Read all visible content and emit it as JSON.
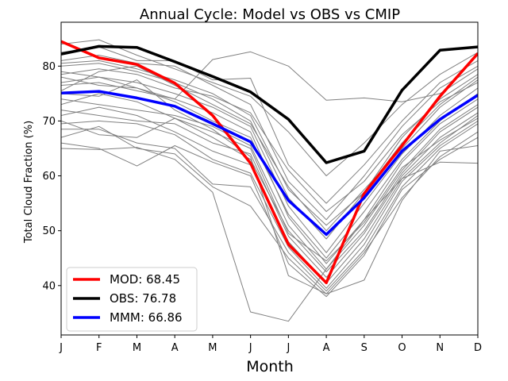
{
  "chart_data": {
    "type": "line",
    "title": "Annual Cycle: Model vs OBS vs CMIP",
    "xlabel": "Month",
    "ylabel": "Total Cloud Fraction (%)",
    "categories": [
      "J",
      "F",
      "M",
      "A",
      "M",
      "J",
      "J",
      "A",
      "S",
      "O",
      "N",
      "D"
    ],
    "ylim": [
      31,
      88
    ],
    "yticks": [
      40,
      50,
      60,
      70,
      80
    ],
    "grid": false,
    "legend_position": "lower-left",
    "colors": {
      "MOD": "#ff0000",
      "OBS": "#000000",
      "MMM": "#0000ff",
      "ensemble": "#808080"
    },
    "series": [
      {
        "name": "MOD",
        "legend": "MOD: 68.45",
        "values": [
          84.5,
          81.5,
          80.3,
          76.9,
          71.0,
          62.3,
          47.5,
          40.5,
          56.8,
          65.5,
          74.5,
          82.3
        ]
      },
      {
        "name": "OBS",
        "legend": "OBS: 76.78",
        "values": [
          82.2,
          83.6,
          83.4,
          80.8,
          78.1,
          75.3,
          70.3,
          62.4,
          64.5,
          75.6,
          82.9,
          83.5
        ]
      },
      {
        "name": "MMM",
        "legend": "MMM: 66.86",
        "values": [
          75.1,
          75.4,
          74.2,
          72.7,
          69.5,
          66.2,
          55.5,
          49.3,
          56.0,
          64.5,
          70.3,
          74.7
        ]
      }
    ],
    "ensemble": [
      [
        84.0,
        84.8,
        82.0,
        79.5,
        77.0,
        74.5,
        68.0,
        60.0,
        66.0,
        73.0,
        78.5,
        82.5
      ],
      [
        82.5,
        83.5,
        81.0,
        81.0,
        77.5,
        77.8,
        62.0,
        55.0,
        62.0,
        70.0,
        77.0,
        81.0
      ],
      [
        81.0,
        82.0,
        80.5,
        80.0,
        76.5,
        73.0,
        59.0,
        52.0,
        60.0,
        69.0,
        76.0,
        80.0
      ],
      [
        80.0,
        80.5,
        79.0,
        77.0,
        74.0,
        70.0,
        56.0,
        48.5,
        57.0,
        66.0,
        73.0,
        78.0
      ],
      [
        79.0,
        78.0,
        77.0,
        75.0,
        72.5,
        69.0,
        54.5,
        46.0,
        55.0,
        64.0,
        71.0,
        76.0
      ],
      [
        78.0,
        76.5,
        76.0,
        73.5,
        70.0,
        67.0,
        53.0,
        45.0,
        53.5,
        63.0,
        70.0,
        75.0
      ],
      [
        76.5,
        77.0,
        75.5,
        74.0,
        71.5,
        68.0,
        52.5,
        44.0,
        52.0,
        62.5,
        69.5,
        74.0
      ],
      [
        75.5,
        79.0,
        80.0,
        76.5,
        73.0,
        69.5,
        58.0,
        50.0,
        57.5,
        65.0,
        72.5,
        77.5
      ],
      [
        74.0,
        73.0,
        72.0,
        71.0,
        69.0,
        65.5,
        51.0,
        43.0,
        51.0,
        61.0,
        68.5,
        73.0
      ],
      [
        73.0,
        75.0,
        73.5,
        70.5,
        67.0,
        63.0,
        50.0,
        42.5,
        50.0,
        60.5,
        68.0,
        72.5
      ],
      [
        72.0,
        71.0,
        70.0,
        69.5,
        66.0,
        64.0,
        49.0,
        41.5,
        49.5,
        60.0,
        67.0,
        71.5
      ],
      [
        71.0,
        72.5,
        71.0,
        68.0,
        64.5,
        62.0,
        48.0,
        40.5,
        48.5,
        59.5,
        66.0,
        71.0
      ],
      [
        69.5,
        70.0,
        69.5,
        67.5,
        63.0,
        60.5,
        47.0,
        39.5,
        47.5,
        59.0,
        65.5,
        70.0
      ],
      [
        68.5,
        68.5,
        66.0,
        65.0,
        58.5,
        58.0,
        46.0,
        39.0,
        46.5,
        58.0,
        65.0,
        69.5
      ],
      [
        67.0,
        69.0,
        65.0,
        64.0,
        58.0,
        54.5,
        45.0,
        38.5,
        46.0,
        56.0,
        63.5,
        68.0
      ],
      [
        66.0,
        65.0,
        61.8,
        65.5,
        62.5,
        60.0,
        44.0,
        38.0,
        45.5,
        57.5,
        63.0,
        67.0
      ],
      [
        65.0,
        64.8,
        65.2,
        63.0,
        57.0,
        35.2,
        33.5,
        43.0,
        52.0,
        59.5,
        62.5,
        62.3
      ],
      [
        77.0,
        78.0,
        76.0,
        74.0,
        81.2,
        82.6,
        80.0,
        73.8,
        74.2,
        73.5,
        75.0,
        79.5
      ],
      [
        80.5,
        81.0,
        79.5,
        77.5,
        75.0,
        71.0,
        57.5,
        51.0,
        57.0,
        67.0,
        74.0,
        78.5
      ],
      [
        75.0,
        74.5,
        77.5,
        72.0,
        68.5,
        63.5,
        41.8,
        38.5,
        41.0,
        55.5,
        64.5,
        65.5
      ],
      [
        70.0,
        67.5,
        67.0,
        70.5,
        68.0,
        65.0,
        49.5,
        44.5,
        51.5,
        61.5,
        66.5,
        70.5
      ],
      [
        78.5,
        79.5,
        78.5,
        76.0,
        74.5,
        71.5,
        61.0,
        53.5,
        59.0,
        67.5,
        73.5,
        77.0
      ]
    ]
  }
}
